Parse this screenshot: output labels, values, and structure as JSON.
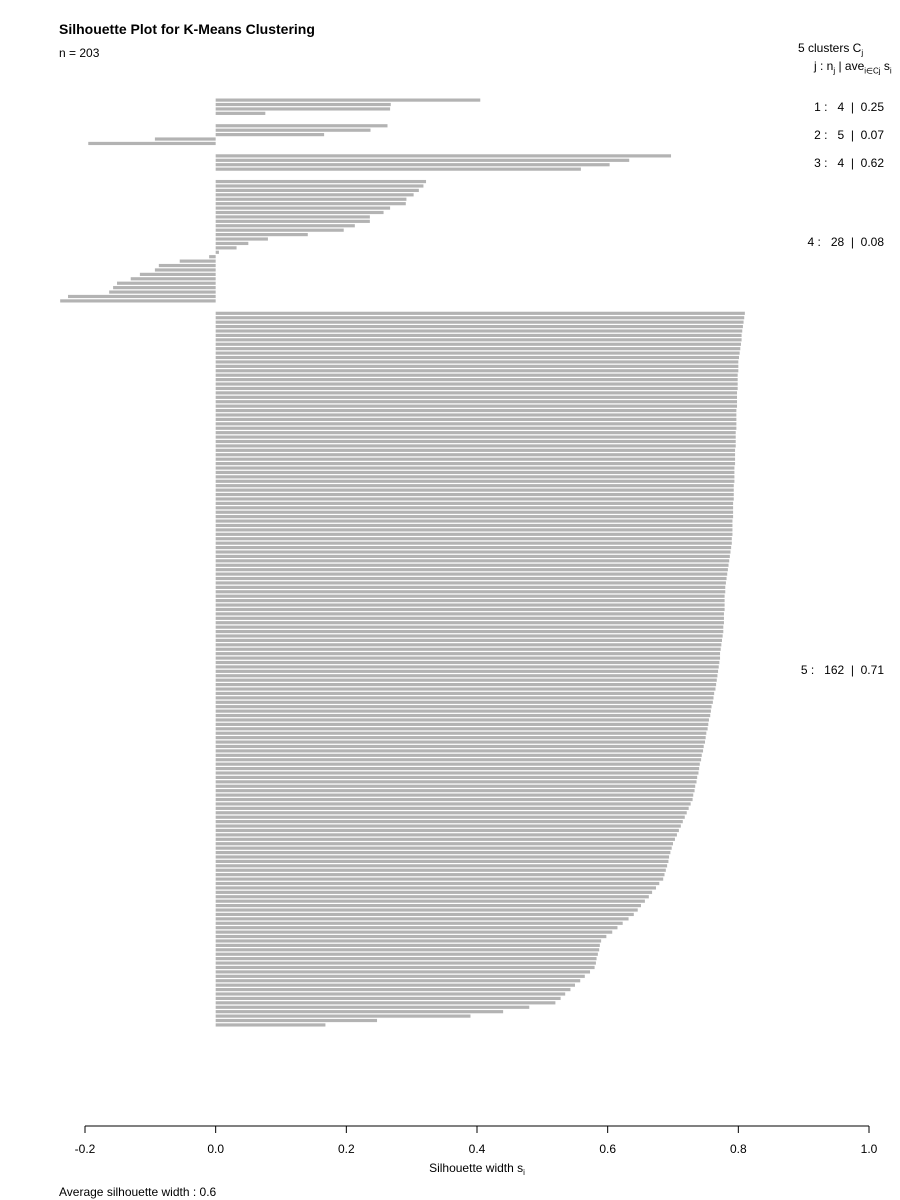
{
  "title": "Silhouette Plot for K-Means Clustering",
  "subtitle": "n = 203",
  "legend": {
    "header": "5  clusters  C",
    "header_sub": "j",
    "colheader_prefix": "j :  n",
    "colheader_sub1": "j",
    "colheader_mid": " | ave",
    "colheader_sub2": "i∈Cj",
    "colheader_suffix": "  s",
    "colheader_sub3": "i"
  },
  "footer": "Average silhouette width :  0.6",
  "xlabel": "Silhouette width s",
  "xlabel_sub": "i",
  "chart_data": {
    "type": "bar",
    "orientation": "horizontal",
    "title": "Silhouette Plot for K-Means Clustering",
    "xlabel": "Silhouette width s_i",
    "xlim": [
      -0.2,
      1.0
    ],
    "xticks": [
      "-0.2",
      "0.0",
      "0.2",
      "0.4",
      "0.6",
      "0.8",
      "1.0"
    ],
    "xtick_values": [
      -0.2,
      0.0,
      0.2,
      0.4,
      0.6,
      0.8,
      1.0
    ],
    "bar_color": "#b3b3b3",
    "n": 203,
    "average_silhouette_width": 0.6,
    "clusters": [
      {
        "j": 1,
        "n": 4,
        "ave": 0.25,
        "label": "1 :   4  |  0.25",
        "values": [
          0.405,
          0.268,
          0.267,
          0.076
        ]
      },
      {
        "j": 2,
        "n": 5,
        "ave": 0.07,
        "label": "2 :   5  |  0.07",
        "values": [
          0.263,
          0.237,
          0.166,
          -0.093,
          -0.195
        ]
      },
      {
        "j": 3,
        "n": 4,
        "ave": 0.62,
        "label": "3 :   4  |  0.62",
        "values": [
          0.697,
          0.633,
          0.603,
          0.559
        ]
      },
      {
        "j": 4,
        "n": 28,
        "ave": 0.08,
        "label": "4 :   28  |  0.08",
        "values": [
          0.322,
          0.318,
          0.311,
          0.303,
          0.292,
          0.291,
          0.267,
          0.257,
          0.236,
          0.236,
          0.213,
          0.196,
          0.141,
          0.08,
          0.05,
          0.032,
          0.005,
          -0.01,
          -0.055,
          -0.087,
          -0.093,
          -0.116,
          -0.13,
          -0.151,
          -0.157,
          -0.163,
          -0.226,
          -0.238
        ]
      },
      {
        "j": 5,
        "n": 162,
        "ave": 0.71,
        "label": "5 :   162  |  0.71",
        "values": []
      }
    ]
  }
}
